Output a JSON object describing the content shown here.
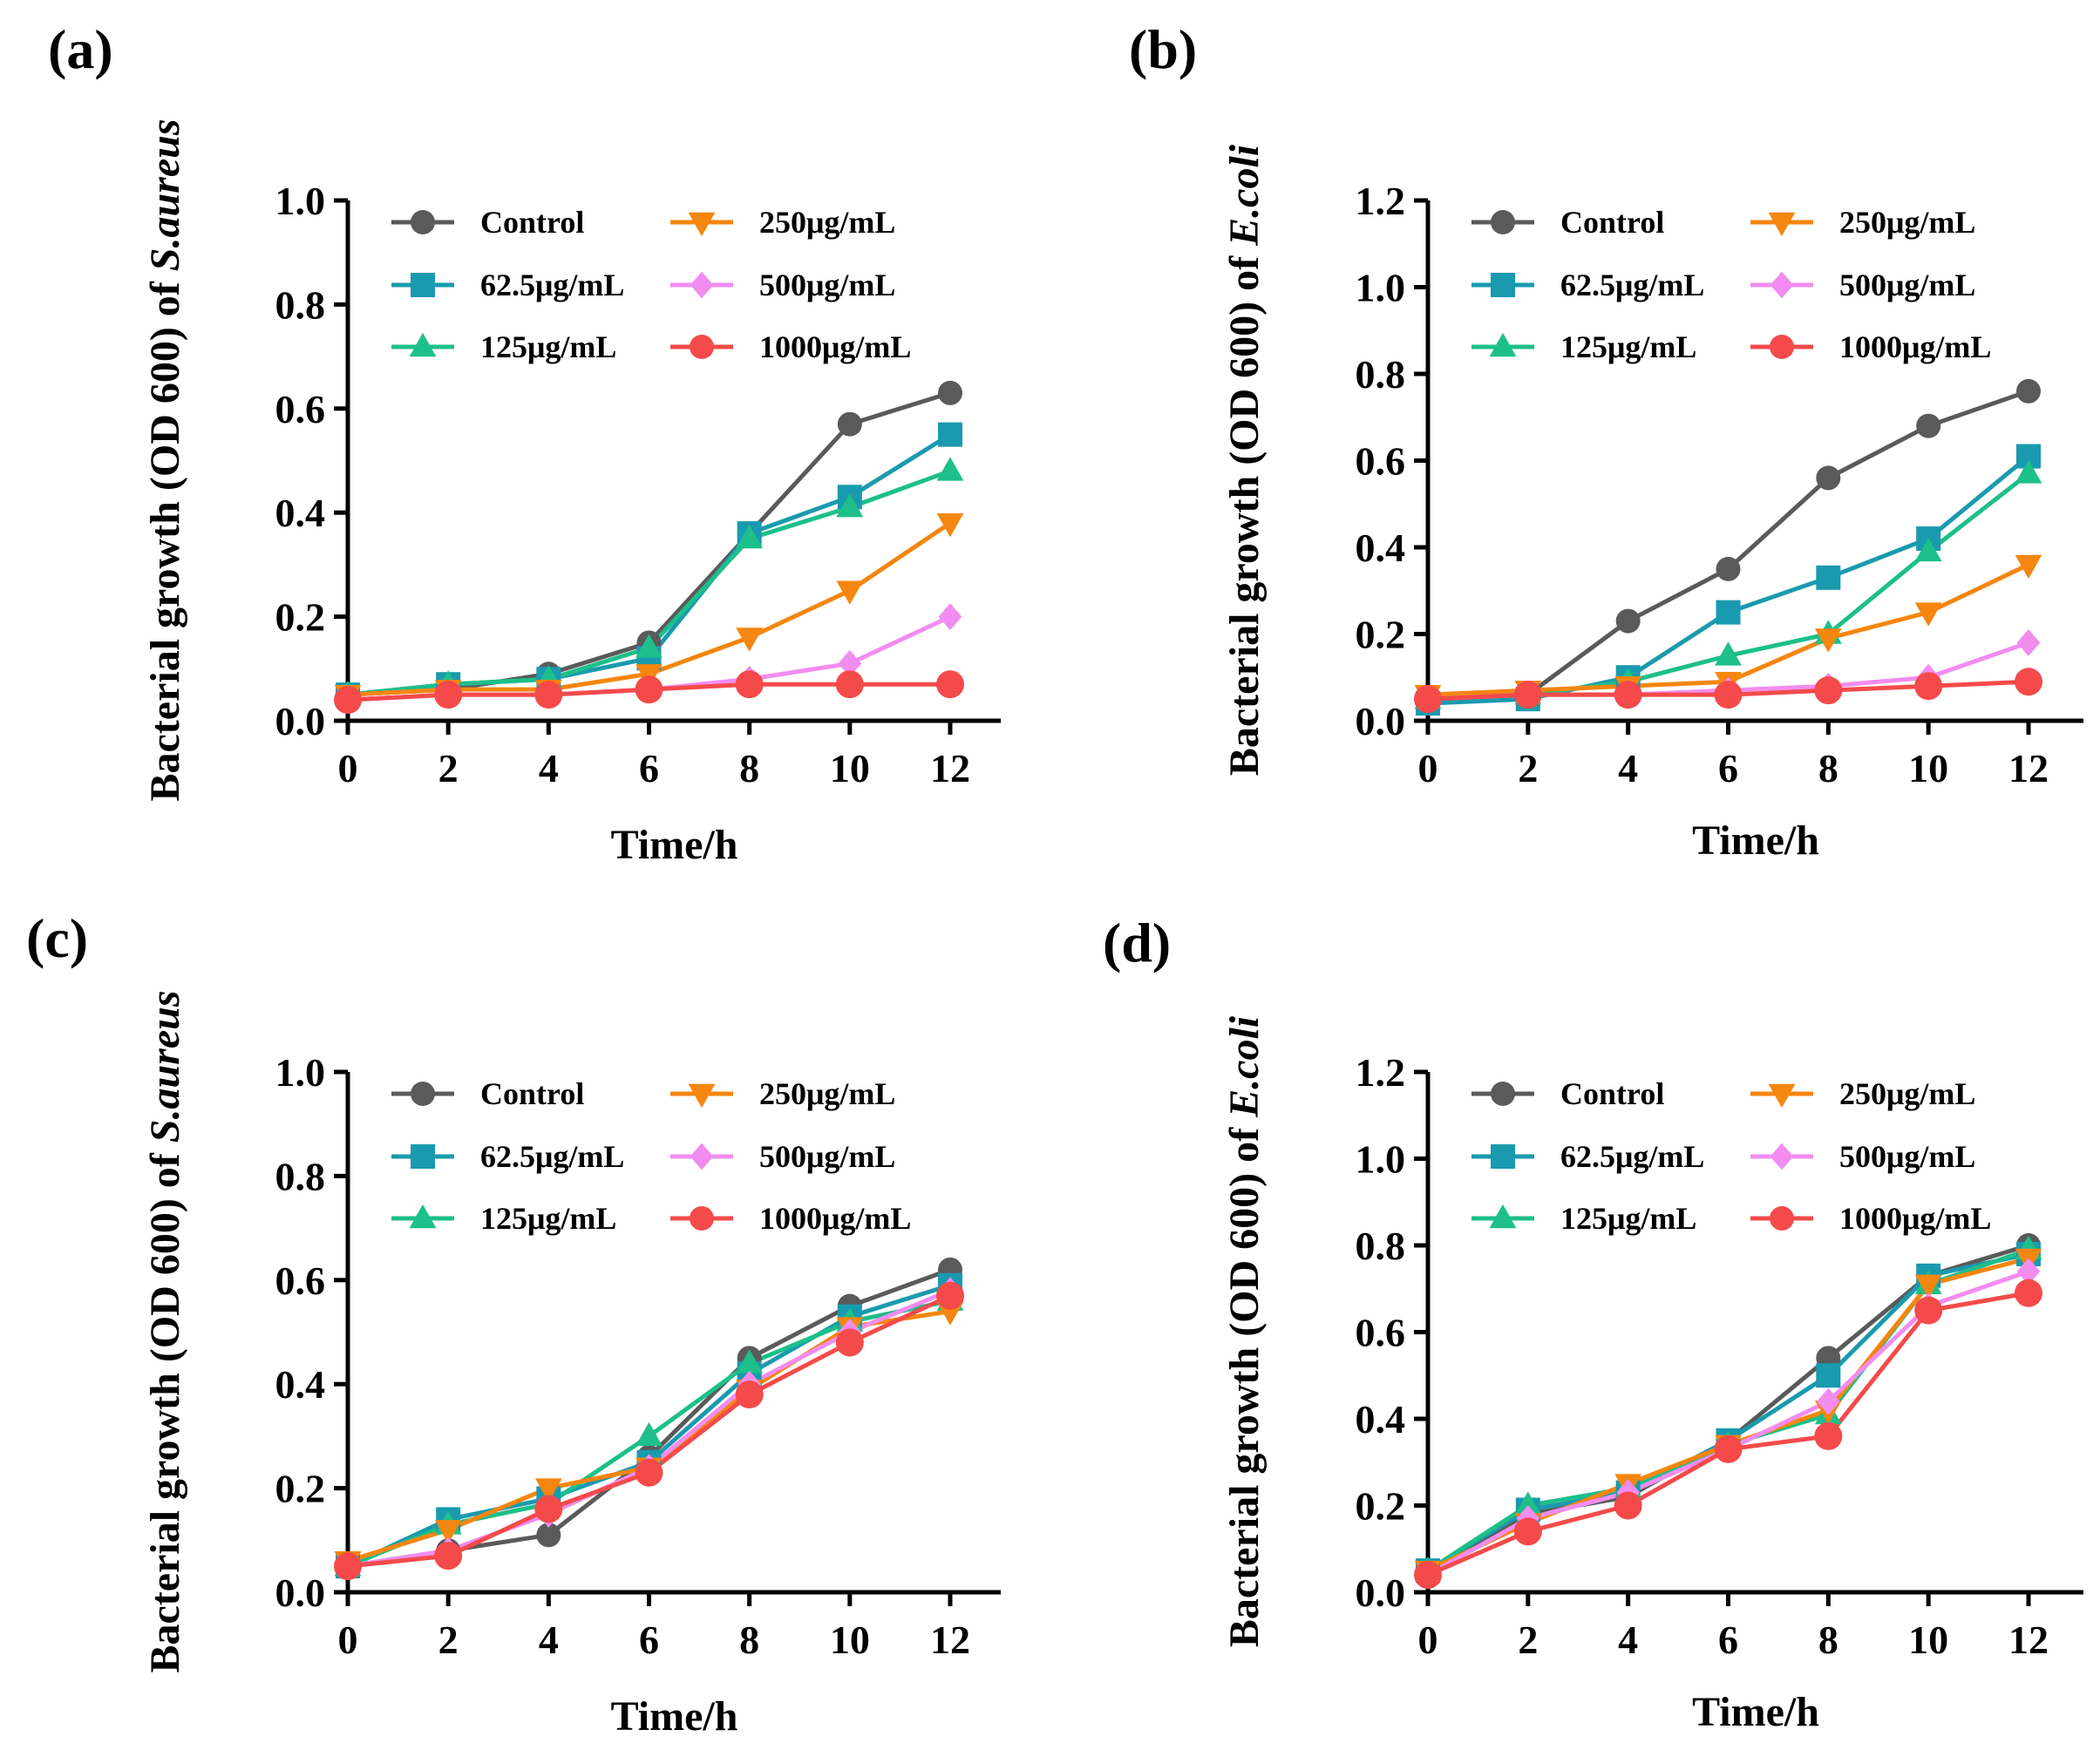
{
  "chart_data": [
    {
      "panel_label": "(a)",
      "type": "line",
      "x": [
        0,
        2,
        4,
        6,
        8,
        10,
        12
      ],
      "xlabel": "Time/h",
      "ylabel_prefix": "Bacterial growth (OD 600) of ",
      "ylabel_species": "S.aureus",
      "ylim": [
        0,
        1.0
      ],
      "yticks": [
        "0.0",
        "0.2",
        "0.4",
        "0.6",
        "0.8",
        "1.0"
      ],
      "xticks": [
        "0",
        "2",
        "4",
        "6",
        "8",
        "10",
        "12"
      ],
      "legend_position": "top",
      "series": [
        {
          "name": "Control",
          "values": [
            0.05,
            0.06,
            0.09,
            0.15,
            0.36,
            0.57,
            0.63
          ]
        },
        {
          "name": "62.5μg/mL",
          "values": [
            0.05,
            0.07,
            0.08,
            0.12,
            0.36,
            0.43,
            0.55
          ]
        },
        {
          "name": "125μg/mL",
          "values": [
            0.05,
            0.07,
            0.08,
            0.14,
            0.35,
            0.41,
            0.48
          ]
        },
        {
          "name": "250μg/mL",
          "values": [
            0.05,
            0.06,
            0.06,
            0.09,
            0.16,
            0.25,
            0.38
          ]
        },
        {
          "name": "500μg/mL",
          "values": [
            0.04,
            0.05,
            0.05,
            0.06,
            0.08,
            0.11,
            0.2
          ]
        },
        {
          "name": "1000μg/mL",
          "values": [
            0.04,
            0.05,
            0.05,
            0.06,
            0.07,
            0.07,
            0.07
          ]
        }
      ]
    },
    {
      "panel_label": "(b)",
      "type": "line",
      "x": [
        0,
        2,
        4,
        6,
        8,
        10,
        12
      ],
      "xlabel": "Time/h",
      "ylabel_prefix": "Bacterial growth (OD 600) of ",
      "ylabel_species": "E.coli",
      "ylim": [
        0,
        1.2
      ],
      "yticks": [
        "0.0",
        "0.2",
        "0.4",
        "0.6",
        "0.8",
        "1.0",
        "1.2"
      ],
      "xticks": [
        "0",
        "2",
        "4",
        "6",
        "8",
        "10",
        "12"
      ],
      "legend_position": "top",
      "series": [
        {
          "name": "Control",
          "values": [
            0.05,
            0.06,
            0.23,
            0.35,
            0.56,
            0.68,
            0.76
          ]
        },
        {
          "name": "62.5μg/mL",
          "values": [
            0.04,
            0.05,
            0.1,
            0.25,
            0.33,
            0.42,
            0.61
          ]
        },
        {
          "name": "125μg/mL",
          "values": [
            0.05,
            0.06,
            0.09,
            0.15,
            0.2,
            0.39,
            0.57
          ]
        },
        {
          "name": "250μg/mL",
          "values": [
            0.06,
            0.07,
            0.08,
            0.09,
            0.19,
            0.25,
            0.36
          ]
        },
        {
          "name": "500μg/mL",
          "values": [
            0.05,
            0.06,
            0.06,
            0.07,
            0.08,
            0.1,
            0.18
          ]
        },
        {
          "name": "1000μg/mL",
          "values": [
            0.05,
            0.06,
            0.06,
            0.06,
            0.07,
            0.08,
            0.09
          ]
        }
      ]
    },
    {
      "panel_label": "(c)",
      "type": "line",
      "x": [
        0,
        2,
        4,
        6,
        8,
        10,
        12
      ],
      "xlabel": "Time/h",
      "ylabel_prefix": "Bacterial growth (OD 600) of ",
      "ylabel_species": "S.aureus",
      "ylim": [
        0,
        1.0
      ],
      "yticks": [
        "0.0",
        "0.2",
        "0.4",
        "0.6",
        "0.8",
        "1.0"
      ],
      "xticks": [
        "0",
        "2",
        "4",
        "6",
        "8",
        "10",
        "12"
      ],
      "legend_position": "top",
      "series": [
        {
          "name": "Control",
          "values": [
            0.05,
            0.08,
            0.11,
            0.26,
            0.45,
            0.55,
            0.62
          ]
        },
        {
          "name": "62.5μg/mL",
          "values": [
            0.05,
            0.14,
            0.18,
            0.25,
            0.42,
            0.53,
            0.59
          ]
        },
        {
          "name": "125μg/mL",
          "values": [
            0.05,
            0.13,
            0.17,
            0.3,
            0.44,
            0.52,
            0.56
          ]
        },
        {
          "name": "250μg/mL",
          "values": [
            0.06,
            0.12,
            0.2,
            0.24,
            0.39,
            0.51,
            0.54
          ]
        },
        {
          "name": "500μg/mL",
          "values": [
            0.05,
            0.08,
            0.15,
            0.24,
            0.4,
            0.5,
            0.58
          ]
        },
        {
          "name": "1000μg/mL",
          "values": [
            0.05,
            0.07,
            0.16,
            0.23,
            0.38,
            0.48,
            0.57
          ]
        }
      ]
    },
    {
      "panel_label": "(d)",
      "type": "line",
      "x": [
        0,
        2,
        4,
        6,
        8,
        10,
        12
      ],
      "xlabel": "Time/h",
      "ylabel_prefix": "Bacterial growth (OD 600) of ",
      "ylabel_species": "E.coli",
      "ylim": [
        0,
        1.2
      ],
      "yticks": [
        "0.0",
        "0.2",
        "0.4",
        "0.6",
        "0.8",
        "1.0",
        "1.2"
      ],
      "xticks": [
        "0",
        "2",
        "4",
        "6",
        "8",
        "10",
        "12"
      ],
      "legend_position": "top",
      "series": [
        {
          "name": "Control",
          "values": [
            0.05,
            0.18,
            0.22,
            0.35,
            0.54,
            0.73,
            0.8
          ]
        },
        {
          "name": "62.5μg/mL",
          "values": [
            0.05,
            0.19,
            0.23,
            0.35,
            0.5,
            0.73,
            0.78
          ]
        },
        {
          "name": "125μg/mL",
          "values": [
            0.05,
            0.2,
            0.24,
            0.34,
            0.41,
            0.71,
            0.79
          ]
        },
        {
          "name": "250μg/mL",
          "values": [
            0.05,
            0.16,
            0.25,
            0.34,
            0.42,
            0.71,
            0.77
          ]
        },
        {
          "name": "500μg/mL",
          "values": [
            0.04,
            0.17,
            0.23,
            0.33,
            0.44,
            0.66,
            0.74
          ]
        },
        {
          "name": "1000μg/mL",
          "values": [
            0.04,
            0.14,
            0.2,
            0.33,
            0.36,
            0.65,
            0.69
          ]
        }
      ]
    }
  ],
  "series_styles": [
    {
      "name": "Control",
      "color": "#5a5a5a",
      "marker": "circle"
    },
    {
      "name": "62.5μg/mL",
      "color": "#1a9aae",
      "marker": "square"
    },
    {
      "name": "125μg/mL",
      "color": "#1dbf8a",
      "marker": "triangle-up"
    },
    {
      "name": "250μg/mL",
      "color": "#f5860f",
      "marker": "triangle-down"
    },
    {
      "name": "500μg/mL",
      "color": "#f28cf0",
      "marker": "diamond"
    },
    {
      "name": "1000μg/mL",
      "color": "#f44a4a",
      "marker": "circle"
    }
  ]
}
